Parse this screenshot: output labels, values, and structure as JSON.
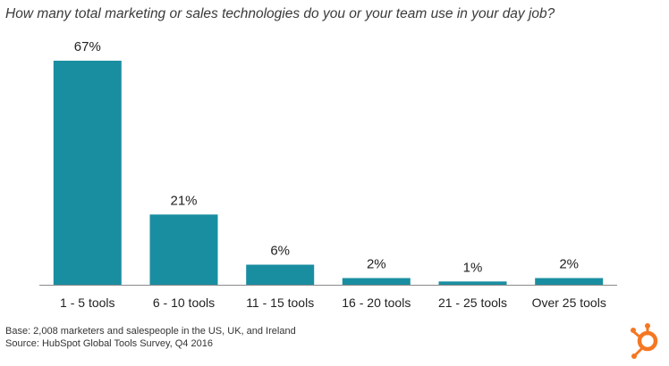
{
  "chart_data": {
    "type": "bar",
    "title": "How many total marketing or sales technologies do you or your team use in your day job?",
    "categories": [
      "1 - 5 tools",
      "6 - 10 tools",
      "11 - 15 tools",
      "16 - 20 tools",
      "21 - 25 tools",
      "Over 25 tools"
    ],
    "values": [
      67,
      21,
      6,
      2,
      1,
      2
    ],
    "value_labels": [
      "67%",
      "21%",
      "6%",
      "2%",
      "1%",
      "2%"
    ],
    "unit": "%",
    "ylim": [
      0,
      67
    ],
    "grid": false,
    "bar_color": "#1a8ea1",
    "axis_color": "#8a8a8a"
  },
  "footer": {
    "base": "Base: 2,008 marketers and salespeople in the US, UK, and Ireland",
    "source": "Source: HubSpot Global Tools Survey, Q4 2016"
  },
  "logo": {
    "icon": "hubspot-sprocket-icon",
    "color": "#f57722"
  }
}
